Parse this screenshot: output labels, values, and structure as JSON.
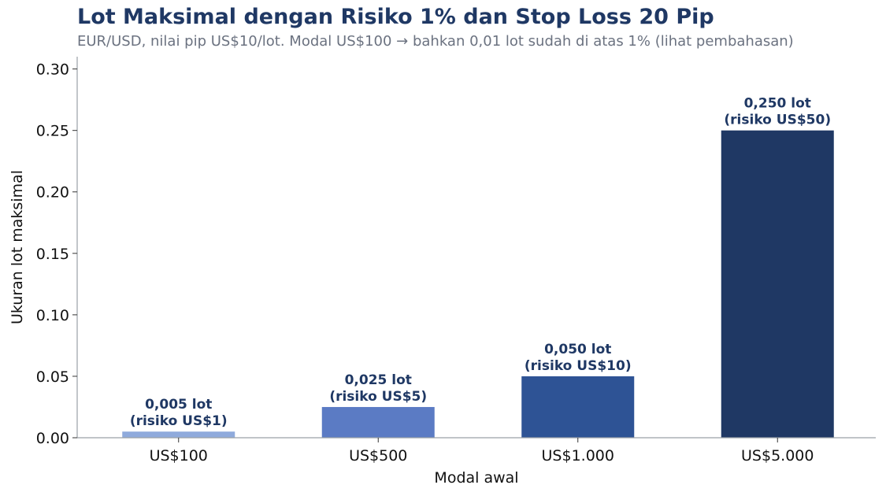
{
  "title": "Lot Maksimal dengan Risiko 1% dan Stop Loss 20 Pip",
  "subtitle": "EUR/USD, nilai pip US$10/lot. Modal US$100 → bahkan 0,01 lot sudah di atas 1% (lihat pembahasan)",
  "chart_data": {
    "type": "bar",
    "categories": [
      "US$100",
      "US$500",
      "US$1.000",
      "US$5.000"
    ],
    "values": [
      0.005,
      0.025,
      0.05,
      0.25
    ],
    "data_labels": [
      [
        "0,005 lot",
        "(risiko US$1)"
      ],
      [
        "0,025 lot",
        "(risiko US$5)"
      ],
      [
        "0,050 lot",
        "(risiko US$10)"
      ],
      [
        "0,250 lot",
        "(risiko US$50)"
      ]
    ],
    "colors": [
      "#8faadc",
      "#5b7bc4",
      "#2e5395",
      "#1f3864"
    ],
    "xlabel": "Modal awal",
    "ylabel": "Ukuran lot maksimal",
    "ylim": [
      0,
      0.31
    ],
    "yticks": [
      0.0,
      0.05,
      0.1,
      0.15,
      0.2,
      0.25,
      0.3
    ],
    "ytick_labels": [
      "0.00",
      "0.05",
      "0.10",
      "0.15",
      "0.20",
      "0.25",
      "0.30"
    ],
    "grid": false,
    "legend": "none"
  }
}
